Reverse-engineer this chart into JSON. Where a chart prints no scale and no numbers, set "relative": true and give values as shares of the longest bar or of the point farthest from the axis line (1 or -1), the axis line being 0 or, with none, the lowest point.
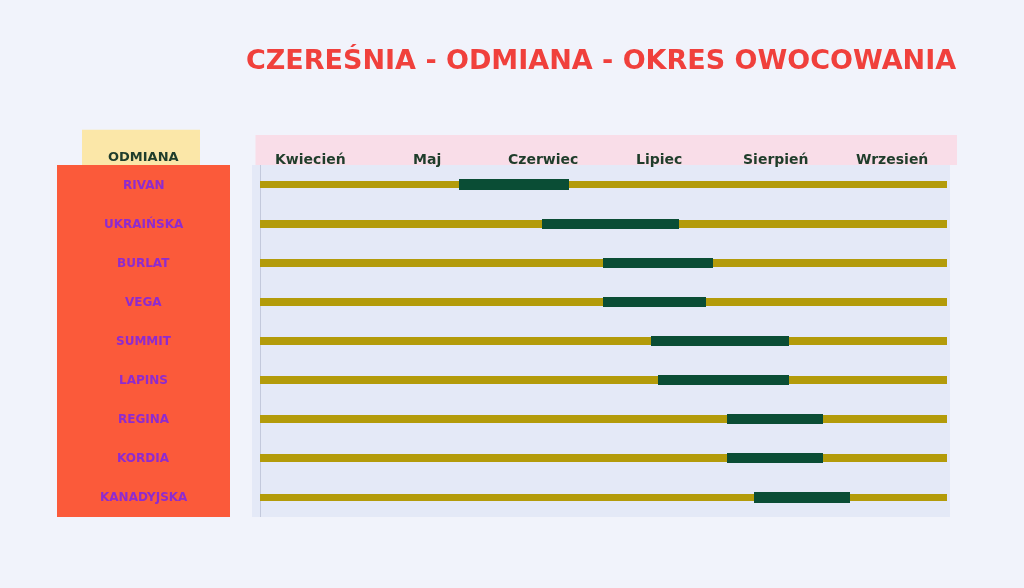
{
  "chart_data": {
    "type": "bar",
    "orientation": "horizontal",
    "relative": true,
    "title": "CZEREŚNIA - ODMIANA - OKRES OWOCOWANIA",
    "ylabel": "ODMIANA",
    "categories": [
      "RIVAN",
      "UKRAIŃSKA",
      "BURLAT",
      "VEGA",
      "SUMMIT",
      "LAPINS",
      "REGINA",
      "KORDIA",
      "KANADYJSKA"
    ],
    "series": [
      {
        "color": "#b39b0a",
        "values": [
          0.29,
          0.41,
          0.5,
          0.5,
          0.57,
          0.58,
          0.68,
          0.68,
          0.72
        ]
      },
      {
        "color": "#0a4d35",
        "values": [
          0.16,
          0.2,
          0.16,
          0.15,
          0.2,
          0.19,
          0.14,
          0.14,
          0.14
        ]
      },
      {
        "color": "#b39b0a",
        "values": [
          0.55,
          0.39,
          0.34,
          0.35,
          0.23,
          0.23,
          0.18,
          0.18,
          0.14
        ]
      }
    ],
    "stacked": true,
    "annotations": [
      "Kwiecień",
      "Maj",
      "Czerwiec",
      "Lipiec",
      "Sierpień",
      "Wrzesień"
    ],
    "grid": false
  }
}
